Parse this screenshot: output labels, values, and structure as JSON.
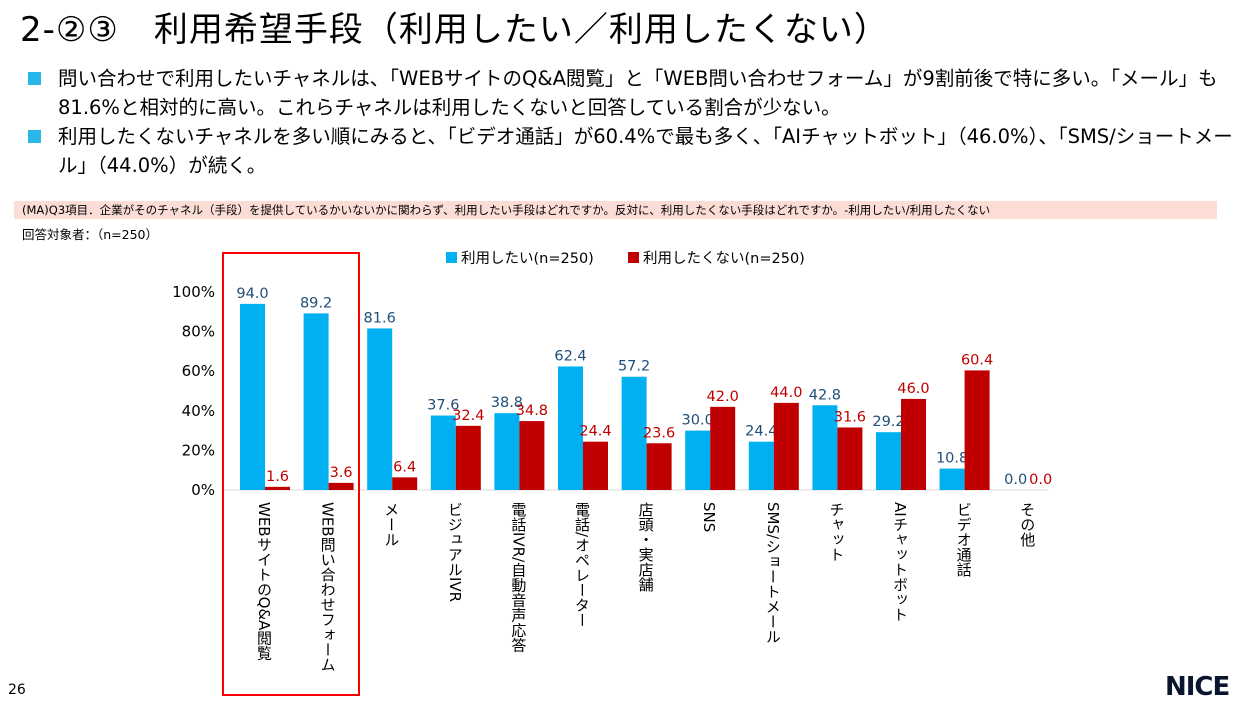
{
  "title": "2-②③　利用希望手段（利用したい／利用したくない）",
  "bullets": [
    "問い合わせで利用したいチャネルは、「WEBサイトのQ&A閲覧」と「WEB問い合わせフォーム」が9割前後で特に多い。「メール」も81.6%と相対的に高い。これらチャネルは利用したくないと回答している割合が少ない。",
    "利用したくないチャネルを多い順にみると、「ビデオ通話」が60.4%で最も多く、「AIチャットボット」（46.0%）、「SMS/ショートメール」（44.0%）が続く。"
  ],
  "question": "(MA)Q3項目．企業がそのチャネル（手段）を提供しているかいないかに関わらず、利用したい手段はどれですか。反対に、利用したくない手段はどれですか。-利用したい/利用したくない",
  "respondents": "回答対象者：（n=250）",
  "page_number": "26",
  "logo": "NICE",
  "colors": {
    "want": "#00B0F0",
    "not_want": "#C00000",
    "want_label": "#1F4E79",
    "highlight": "#FF0000"
  },
  "chart_data": {
    "type": "bar",
    "categories": [
      "WEBサイトのQ&A閲覧",
      "WEB問い合わせフォーム",
      "メール",
      "ビジュアルIVR",
      "電話IVR/自動音声応答",
      "電話/オペレーター",
      "店頭・実店舗",
      "SNS",
      "SMS/ショートメール",
      "チャット",
      "AIチャットボット",
      "ビデオ通話",
      "その他"
    ],
    "series": [
      {
        "name": "利用したい(n=250)",
        "values": [
          94.0,
          89.2,
          81.6,
          37.6,
          38.8,
          62.4,
          57.2,
          30.0,
          24.4,
          42.8,
          29.2,
          10.8,
          0.0
        ]
      },
      {
        "name": "利用したくない(n=250)",
        "values": [
          1.6,
          3.6,
          6.4,
          32.4,
          34.8,
          24.4,
          23.6,
          42.0,
          44.0,
          31.6,
          46.0,
          60.4,
          0.0
        ]
      }
    ],
    "yticks": [
      "0%",
      "20%",
      "40%",
      "60%",
      "80%",
      "100%"
    ],
    "ylim": [
      0,
      100
    ],
    "legend": "top"
  }
}
